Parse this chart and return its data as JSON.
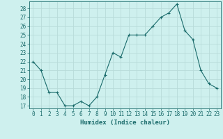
{
  "x": [
    0,
    1,
    2,
    3,
    4,
    5,
    6,
    7,
    8,
    9,
    10,
    11,
    12,
    13,
    14,
    15,
    16,
    17,
    18,
    19,
    20,
    21,
    22,
    23
  ],
  "y": [
    22,
    21,
    18.5,
    18.5,
    17,
    17,
    17.5,
    17,
    18,
    20.5,
    23,
    22.5,
    25,
    25,
    25,
    26,
    27,
    27.5,
    28.5,
    25.5,
    24.5,
    21,
    19.5,
    19
  ],
  "bg_color": "#cef0ee",
  "grid_color": "#b8dbd9",
  "line_color": "#1a6b6b",
  "marker": "+",
  "xlabel": "Humidex (Indice chaleur)",
  "xlabel_fontsize": 6.5,
  "tick_fontsize": 5.5,
  "xlim": [
    -0.5,
    23.5
  ],
  "ylim": [
    16.7,
    28.8
  ],
  "yticks": [
    17,
    18,
    19,
    20,
    21,
    22,
    23,
    24,
    25,
    26,
    27,
    28
  ],
  "xticks": [
    0,
    1,
    2,
    3,
    4,
    5,
    6,
    7,
    8,
    9,
    10,
    11,
    12,
    13,
    14,
    15,
    16,
    17,
    18,
    19,
    20,
    21,
    22,
    23
  ]
}
